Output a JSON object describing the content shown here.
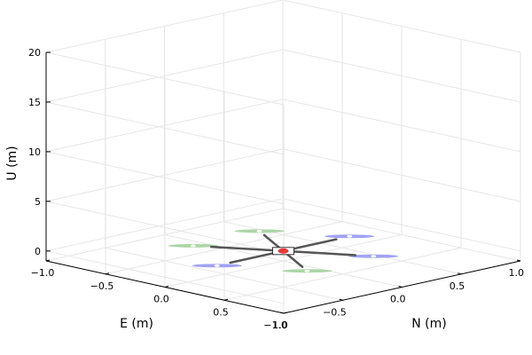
{
  "chart_data": {
    "type": "scatter",
    "subtype": "3d-wireframe",
    "title": "",
    "xlabel": "N (m)",
    "ylabel": "E (m)",
    "zlabel": "U (m)",
    "xlim": [
      -1.0,
      1.0
    ],
    "ylim": [
      -1.0,
      1.0
    ],
    "zlim": [
      -1.0,
      20.0
    ],
    "x_ticks": [
      "−1.0",
      "−0.5",
      "0.0",
      "0.5",
      "1.0"
    ],
    "y_ticks": [
      "−1.0",
      "−0.5",
      "0.0",
      "0.5",
      "1.0"
    ],
    "z_ticks": [
      "0",
      "5",
      "10",
      "15",
      "20"
    ],
    "grid": true,
    "legend": "none",
    "colors": {
      "rotor_a": "#9c9cf2",
      "rotor_b": "#a6d4a0",
      "arm": "#555555",
      "body": "#e83838",
      "grid": "#e6e6e6",
      "axis": "#000000"
    },
    "rotors": [
      {
        "n": -0.56,
        "e": 0.0,
        "color": "rotor_a"
      },
      {
        "n": 0.56,
        "e": 0.0,
        "color": "rotor_a"
      },
      {
        "n": -0.28,
        "e": 0.48,
        "color": "rotor_b"
      },
      {
        "n": 0.28,
        "e": -0.48,
        "color": "rotor_b"
      },
      {
        "n": -0.28,
        "e": -0.48,
        "color": "rotor_b"
      },
      {
        "n": 0.28,
        "e": 0.48,
        "color": "rotor_a"
      }
    ],
    "rotor_radius": 0.2,
    "arm_length": 0.35,
    "body_position": {
      "n": 0.0,
      "e": 0.0,
      "u": 0.0
    }
  }
}
